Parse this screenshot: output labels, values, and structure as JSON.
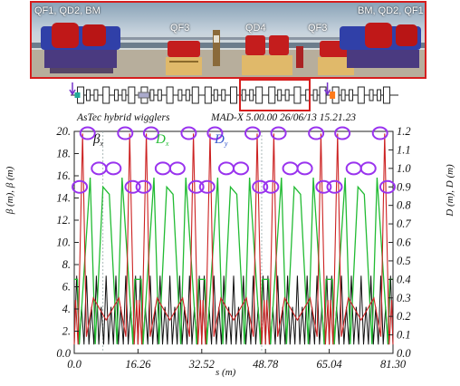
{
  "photo": {
    "labels": {
      "left_group": "QF1, QD2, BM",
      "qf3_left": "QF3",
      "qd4": "QD4",
      "qf3_right": "QF3",
      "right_group": "BM, QD2, QF1"
    }
  },
  "colors": {
    "highlight_box": "#d61e1e",
    "beta_x": "#cc2222",
    "beta_y": "#111111",
    "dispersion": "#22bb33",
    "marker_circle": "#9933ee"
  },
  "chart_data": {
    "type": "line",
    "header_left": "AsTec hybrid wigglers",
    "header_right": "MAD-X 5.00.00  26/06/13 15.21.23",
    "xlabel": "s (m)",
    "ylabel_left": "β (m), β (m)",
    "ylabel_right": "D (m), D (m)",
    "x_ticks": [
      "0.0",
      "16.26",
      "32.52",
      "48.78",
      "65.04",
      "81.30"
    ],
    "y_left_ticks": [
      "0.0",
      "2.",
      "4.",
      "6.",
      "8.",
      "10.",
      "12.",
      "14.",
      "16.",
      "18.",
      "20."
    ],
    "y_right_ticks": [
      "0.0",
      "0.1",
      "0.2",
      "0.3",
      "0.4",
      "0.5",
      "0.6",
      "0.7",
      "0.8",
      "0.9",
      "1.0",
      "1.1",
      "1.2"
    ],
    "xlim": [
      0,
      81.3
    ],
    "ylim_left": [
      0,
      20
    ],
    "ylim_right": [
      0,
      1.2
    ],
    "legend": {
      "beta_x": "β",
      "disp": "D",
      "beta_y": "D"
    },
    "arcs": [
      {
        "start": 0.0,
        "end": 16.26
      },
      {
        "start": 16.26,
        "end": 32.52
      },
      {
        "start": 32.52,
        "end": 48.78
      },
      {
        "start": 48.78,
        "end": 65.04
      },
      {
        "start": 65.04,
        "end": 81.3
      }
    ],
    "series": [
      {
        "id": "beta_x",
        "axis": "left",
        "peak": 19.8,
        "between": 5.0,
        "low": 0.8
      },
      {
        "id": "beta_y",
        "axis": "left",
        "peak": 7.0,
        "low": 0.8
      },
      {
        "id": "disp",
        "axis": "right",
        "straight": 0.4,
        "peak": 0.95,
        "mid": 0.9,
        "low": 0.05
      }
    ],
    "markers_right_axis": [
      {
        "s": 1.4,
        "d": 0.9
      },
      {
        "s": 3.4,
        "d": 1.19
      },
      {
        "s": 6.3,
        "d": 1.0
      },
      {
        "s": 10.0,
        "d": 1.0
      },
      {
        "s": 13.0,
        "d": 1.19
      },
      {
        "s": 14.9,
        "d": 0.9
      },
      {
        "s": 17.7,
        "d": 0.9
      },
      {
        "s": 19.6,
        "d": 1.19
      },
      {
        "s": 22.6,
        "d": 1.0
      },
      {
        "s": 26.3,
        "d": 1.0
      },
      {
        "s": 29.2,
        "d": 1.19
      },
      {
        "s": 31.1,
        "d": 0.9
      },
      {
        "s": 33.9,
        "d": 0.9
      },
      {
        "s": 35.9,
        "d": 1.19
      },
      {
        "s": 38.8,
        "d": 1.0
      },
      {
        "s": 42.5,
        "d": 1.0
      },
      {
        "s": 45.5,
        "d": 1.19
      },
      {
        "s": 47.4,
        "d": 0.9
      },
      {
        "s": 50.2,
        "d": 0.9
      },
      {
        "s": 52.1,
        "d": 1.19
      },
      {
        "s": 55.1,
        "d": 1.0
      },
      {
        "s": 58.8,
        "d": 1.0
      },
      {
        "s": 61.7,
        "d": 1.19
      },
      {
        "s": 63.6,
        "d": 0.9
      },
      {
        "s": 66.4,
        "d": 0.9
      },
      {
        "s": 68.4,
        "d": 1.19
      },
      {
        "s": 71.3,
        "d": 1.0
      },
      {
        "s": 75.0,
        "d": 1.0
      },
      {
        "s": 78.0,
        "d": 1.19
      },
      {
        "s": 79.9,
        "d": 0.9
      }
    ]
  }
}
